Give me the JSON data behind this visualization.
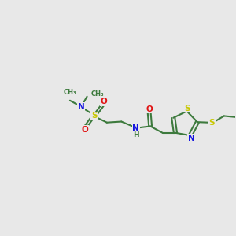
{
  "bg": "#e8e8e8",
  "bc": "#3d7a3d",
  "Nc": "#1414e0",
  "Sc": "#c8c800",
  "Oc": "#e01414",
  "Hc": "#5a9a5a",
  "fs": 7.5,
  "lw": 1.5,
  "xlim": [
    0,
    10
  ],
  "ylim": [
    2,
    8
  ]
}
